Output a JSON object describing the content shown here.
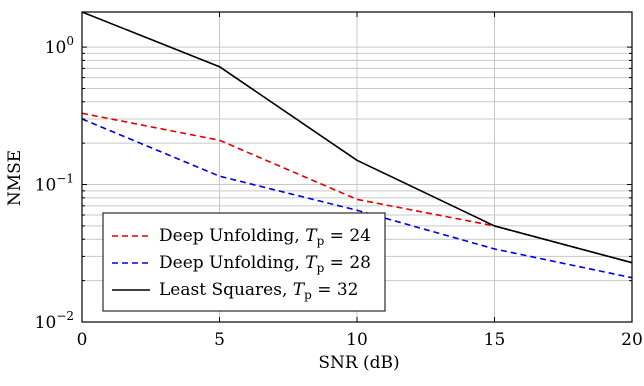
{
  "chart_data": {
    "type": "line",
    "xlabel": "SNR (dB)",
    "ylabel": "NMSE",
    "xlim": [
      0,
      20
    ],
    "ylim": [
      0.01,
      1.8
    ],
    "yscale": "log",
    "grid": true,
    "legend_position": "bottom-left",
    "x_ticks": [
      {
        "value": 0,
        "label": "0"
      },
      {
        "value": 5,
        "label": "5"
      },
      {
        "value": 10,
        "label": "10"
      },
      {
        "value": 15,
        "label": "15"
      },
      {
        "value": 20,
        "label": "20"
      }
    ],
    "y_ticks": [
      {
        "value": 1,
        "base": "10",
        "exp": "0"
      },
      {
        "value": 0.1,
        "base": "10",
        "exp": "−1"
      },
      {
        "value": 0.01,
        "base": "10",
        "exp": "−2"
      }
    ],
    "x": [
      0,
      5,
      10,
      15,
      20
    ],
    "series": [
      {
        "name": "Deep Unfolding,",
        "tp_label": "T",
        "tp_sub": "p",
        "tp_value": "= 24",
        "color": "#e00000",
        "dash": "dashed",
        "values": [
          0.33,
          0.21,
          0.078,
          0.05,
          0.027
        ]
      },
      {
        "name": "Deep Unfolding,",
        "tp_label": "T",
        "tp_sub": "p",
        "tp_value": "= 28",
        "color": "#0000e0",
        "dash": "dashed",
        "values": [
          0.3,
          0.115,
          0.065,
          0.034,
          0.021
        ]
      },
      {
        "name": "Least Squares,",
        "tp_label": "T",
        "tp_sub": "p",
        "tp_value": "= 32",
        "color": "#000000",
        "dash": "solid",
        "values": [
          1.8,
          0.72,
          0.15,
          0.05,
          0.027
        ]
      }
    ]
  }
}
